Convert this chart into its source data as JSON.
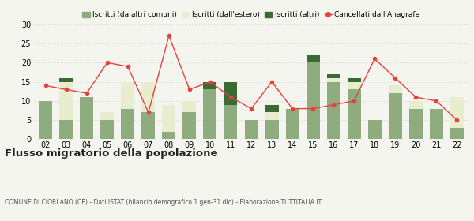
{
  "years": [
    "02",
    "03",
    "04",
    "05",
    "06",
    "07",
    "08",
    "09",
    "10",
    "11",
    "12",
    "13",
    "14",
    "15",
    "16",
    "17",
    "18",
    "19",
    "20",
    "21",
    "22"
  ],
  "iscritti_altri_comuni": [
    10,
    5,
    11,
    5,
    8,
    7,
    2,
    7,
    13,
    9,
    5,
    5,
    8,
    20,
    15,
    13,
    5,
    12,
    8,
    8,
    3
  ],
  "iscritti_estero": [
    0,
    10,
    0,
    2,
    7,
    8,
    7,
    3,
    0,
    0,
    0,
    2,
    0,
    0,
    1,
    2,
    0,
    2,
    2,
    0,
    8
  ],
  "iscritti_altri": [
    0,
    1,
    0,
    0,
    0,
    0,
    0,
    0,
    2,
    6,
    0,
    2,
    0,
    2,
    1,
    1,
    0,
    0,
    0,
    0,
    0
  ],
  "cancellati": [
    14,
    13,
    12,
    20,
    19,
    7,
    27,
    13,
    15,
    11,
    8,
    15,
    8,
    8,
    9,
    10,
    21,
    16,
    11,
    10,
    5
  ],
  "ylim": [
    0,
    30
  ],
  "yticks": [
    0,
    5,
    10,
    15,
    20,
    25,
    30
  ],
  "color_altri_comuni": "#8fac7e",
  "color_estero": "#e8edcf",
  "color_altri": "#3a6b35",
  "color_cancellati": "#e8413c",
  "title": "Flusso migratorio della popolazione",
  "subtitle": "COMUNE DI CIORLANO (CE) - Dati ISTAT (bilancio demografico 1 gen-31 dic) - Elaborazione TUTTITALIA.IT",
  "legend_labels": [
    "Iscritti (da altri comuni)",
    "Iscritti (dall'estero)",
    "Iscritti (altri)",
    "Cancellati dall'Anagrafe"
  ],
  "bg_color": "#f5f5f0",
  "grid_color": "#cccccc"
}
